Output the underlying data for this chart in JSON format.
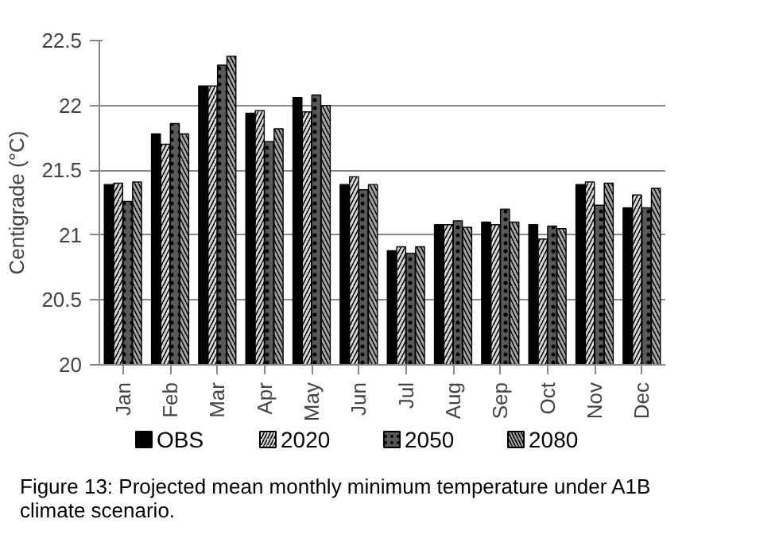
{
  "chart_data": {
    "type": "bar",
    "ylabel": "Centigrade (°C)",
    "categories": [
      "Jan",
      "Feb",
      "Mar",
      "Apr",
      "May",
      "Jun",
      "Jul",
      "Aug",
      "Sep",
      "Oct",
      "Nov",
      "Dec"
    ],
    "series": [
      {
        "name": "OBS",
        "color": "#000000",
        "values": [
          21.39,
          21.78,
          22.15,
          21.94,
          22.06,
          21.39,
          20.88,
          21.08,
          21.1,
          21.08,
          21.39,
          21.21
        ]
      },
      {
        "name": "2020",
        "color": "#d9d9d9",
        "values": [
          21.4,
          21.7,
          22.15,
          21.96,
          21.95,
          21.45,
          20.91,
          21.08,
          21.08,
          20.97,
          21.41,
          21.31
        ]
      },
      {
        "name": "2050",
        "color": "#595959",
        "values": [
          21.26,
          21.86,
          22.31,
          21.72,
          22.08,
          21.35,
          20.86,
          21.11,
          21.2,
          21.07,
          21.23,
          21.21
        ]
      },
      {
        "name": "2080",
        "color": "#a6a6a6",
        "values": [
          21.41,
          21.78,
          22.38,
          21.82,
          22.0,
          21.39,
          20.91,
          21.06,
          21.1,
          21.05,
          21.4,
          21.36
        ]
      }
    ],
    "ylim": [
      20,
      22.5
    ],
    "yticks": [
      20,
      20.5,
      21,
      21.5,
      22,
      22.5
    ],
    "grid": "y",
    "legend": "bottom",
    "annotations": [
      "Figure 13: Projected mean monthly minimum temperature under A1B climate scenario."
    ]
  }
}
